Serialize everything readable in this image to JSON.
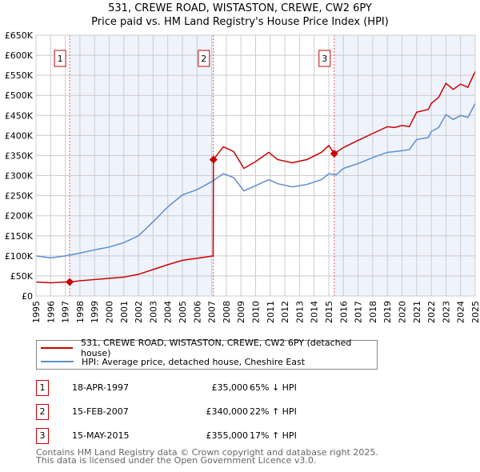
{
  "chart_data": {
    "type": "line",
    "title": "531, CREWE ROAD, WISTASTON, CREWE, CW2 6PY",
    "subtitle": "Price paid vs. HM Land Registry's House Price Index (HPI)",
    "xlim": [
      1995,
      2025
    ],
    "ylim": [
      0,
      650000
    ],
    "y_ticks": [
      "£0",
      "£50K",
      "£100K",
      "£150K",
      "£200K",
      "£250K",
      "£300K",
      "£350K",
      "£400K",
      "£450K",
      "£500K",
      "£550K",
      "£600K",
      "£650K"
    ],
    "x_ticks": [
      "1995",
      "1996",
      "1997",
      "1998",
      "1999",
      "2000",
      "2001",
      "2002",
      "2003",
      "2004",
      "2005",
      "2006",
      "2007",
      "2008",
      "2009",
      "2010",
      "2011",
      "2012",
      "2013",
      "2014",
      "2015",
      "2016",
      "2017",
      "2018",
      "2019",
      "2020",
      "2021",
      "2022",
      "2023",
      "2024",
      "2025"
    ],
    "grid": true,
    "series": [
      {
        "name": "531, CREWE ROAD, WISTASTON, CREWE, CW2 6PY (detached house)",
        "color": "#cc0000",
        "x": [
          1995,
          1996,
          1997,
          1997.3,
          1998,
          1999,
          2000,
          2001,
          2002,
          2003,
          2004,
          2005,
          2006,
          2007.1,
          2007.12,
          2007.8,
          2008.5,
          2009.2,
          2010,
          2010.9,
          2011.5,
          2012.5,
          2013.5,
          2014.5,
          2015,
          2015.37,
          2016,
          2017,
          2018,
          2019,
          2019.5,
          2020,
          2020.5,
          2021,
          2021.8,
          2022,
          2022.5,
          2023,
          2023.5,
          2024,
          2024.5,
          2025
        ],
        "y": [
          35000,
          33000,
          35000,
          35000,
          38000,
          41000,
          44000,
          47000,
          54000,
          66000,
          78000,
          89000,
          94000,
          100000,
          340000,
          372000,
          360000,
          318000,
          335000,
          358000,
          340000,
          332000,
          340000,
          358000,
          375000,
          355000,
          370000,
          388000,
          405000,
          422000,
          420000,
          425000,
          422000,
          458000,
          465000,
          480000,
          495000,
          530000,
          515000,
          528000,
          520000,
          560000
        ]
      },
      {
        "name": "HPI: Average price, detached house, Cheshire East",
        "color": "#5b8fd4",
        "x": [
          1995,
          1996,
          1997,
          1998,
          1999,
          2000,
          2001,
          2002,
          2003,
          2004,
          2005,
          2006,
          2007,
          2007.8,
          2008.5,
          2009.2,
          2010,
          2010.9,
          2011.5,
          2012.5,
          2013.5,
          2014.5,
          2015,
          2015.5,
          2016,
          2017,
          2018,
          2019,
          2019.5,
          2020,
          2020.5,
          2021,
          2021.8,
          2022,
          2022.5,
          2023,
          2023.5,
          2024,
          2024.5,
          2025
        ],
        "y": [
          100000,
          95000,
          100000,
          107000,
          115000,
          122000,
          133000,
          150000,
          185000,
          222000,
          252000,
          265000,
          285000,
          305000,
          295000,
          262000,
          275000,
          290000,
          280000,
          272000,
          278000,
          290000,
          305000,
          302000,
          318000,
          330000,
          345000,
          358000,
          360000,
          362000,
          365000,
          390000,
          395000,
          410000,
          420000,
          452000,
          440000,
          450000,
          445000,
          480000
        ]
      }
    ],
    "sales": [
      {
        "label": "1",
        "date": "18-APR-1997",
        "x": 1997.3,
        "price": "£35,000",
        "value": 35000,
        "hpi": "65% ↓ HPI"
      },
      {
        "label": "2",
        "date": "15-FEB-2007",
        "x": 2007.12,
        "price": "£340,000",
        "value": 340000,
        "hpi": "22% ↑ HPI"
      },
      {
        "label": "3",
        "date": "15-MAY-2015",
        "x": 2015.37,
        "price": "£355,000",
        "value": 355000,
        "hpi": "17% ↑ HPI"
      }
    ]
  },
  "footer": [
    "Contains HM Land Registry data © Crown copyright and database right 2025.",
    "This data is licensed under the Open Government Licence v3.0."
  ]
}
